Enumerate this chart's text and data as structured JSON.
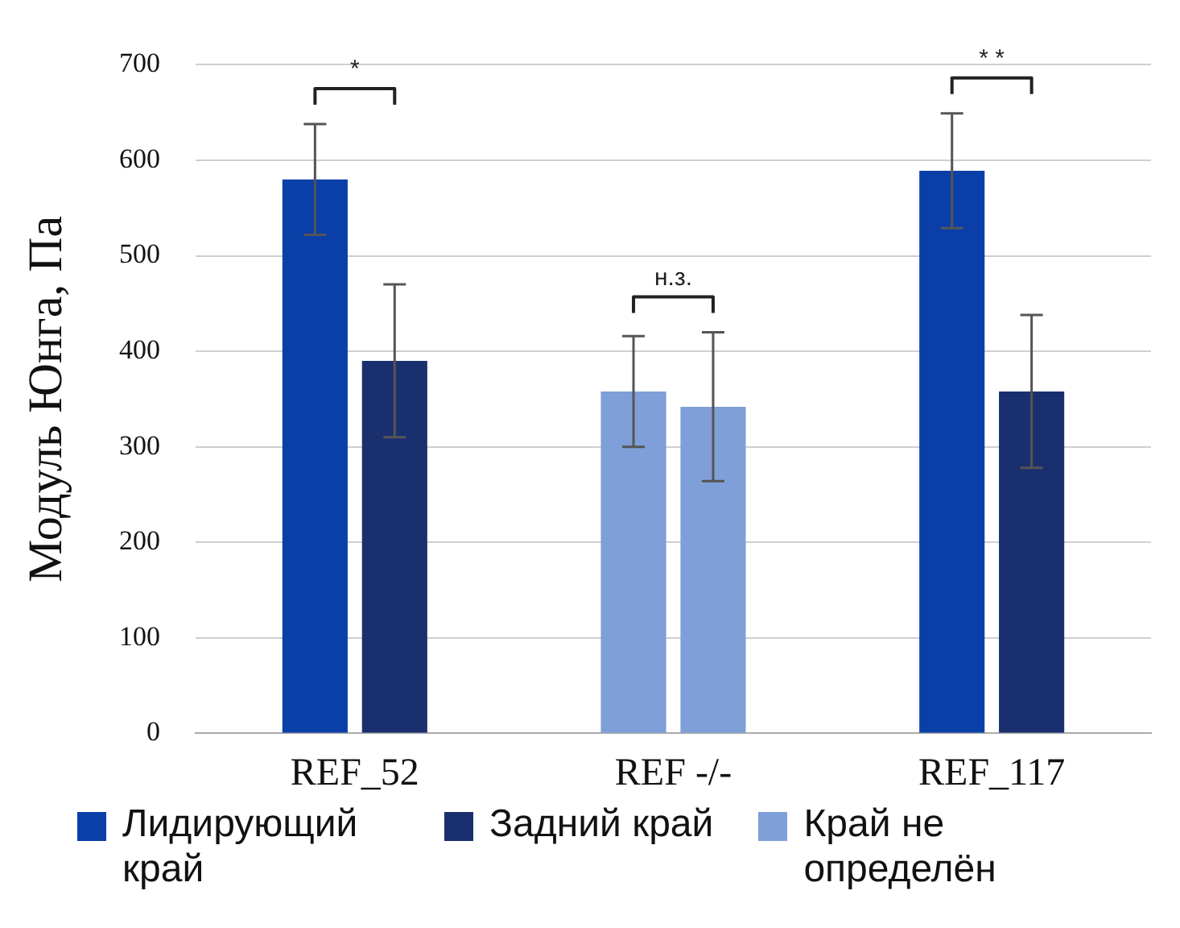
{
  "chart_data": {
    "type": "bar",
    "ylabel": "Модуль Юнга, Па",
    "categories": [
      "REF_52",
      "REF -/-",
      "REF_117"
    ],
    "series": [
      {
        "name": "Лидирующий край",
        "color": "#0b3fa8",
        "values": [
          580,
          null,
          589
        ],
        "errors": [
          58,
          null,
          60
        ]
      },
      {
        "name": "Задний край",
        "color": "#1a2f6e",
        "values": [
          390,
          null,
          358
        ],
        "errors": [
          80,
          null,
          80
        ]
      },
      {
        "name": "Край не определён",
        "color": "#7f9fd8",
        "values": [
          null,
          358,
          null
        ],
        "errors": [
          null,
          58,
          null
        ]
      },
      {
        "color": "#7f9fd8",
        "values": [
          null,
          342,
          null
        ],
        "errors": [
          null,
          78,
          null
        ]
      }
    ],
    "ylim": [
      0,
      700
    ],
    "yticks": [
      0,
      100,
      200,
      300,
      400,
      500,
      600,
      700
    ],
    "grid": "y",
    "legend": "bottom",
    "annotations": [
      "*",
      "н.з.",
      "* *"
    ]
  }
}
